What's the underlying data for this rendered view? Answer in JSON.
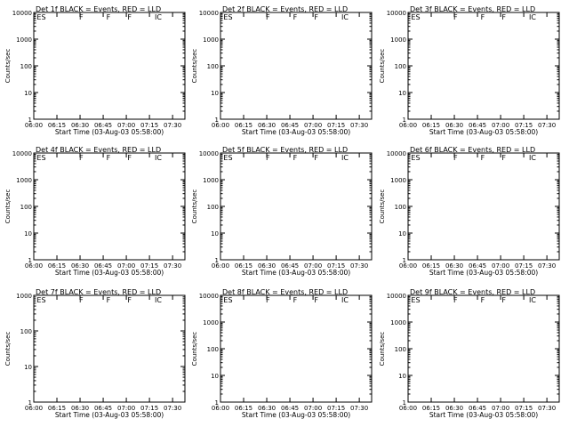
{
  "figure": {
    "colors": {
      "events": "#000000",
      "lld": "#d00000",
      "axes": "#000000",
      "background": "#ffffff"
    },
    "panels_grid": "3x3"
  },
  "chart_data": [
    {
      "type": "line",
      "title": "Det  1f BLACK = Events, RED = LLD",
      "xlabel": "Start Time (03-Aug-03 05:58:00)",
      "ylabel": "Counts/sec",
      "yscale": "log",
      "ylim": [
        1,
        10000
      ],
      "xlim": [
        "06:00",
        "07:38"
      ],
      "xticks": [
        "06:00",
        "06:15",
        "06:30",
        "06:45",
        "07:00",
        "07:15",
        "07:30"
      ],
      "yticks": [
        "1",
        "10",
        "100",
        "1000",
        "10000"
      ],
      "annotations": [
        "ES",
        "F",
        "F",
        "F",
        "IC"
      ],
      "series": [
        {
          "name": "Events",
          "color": "#000000"
        },
        {
          "name": "LLD",
          "color": "#d00000"
        }
      ],
      "x": [],
      "values": {}
    },
    {
      "type": "line",
      "title": "Det  2f BLACK = Events, RED = LLD",
      "xlabel": "Start Time (03-Aug-03 05:58:00)",
      "ylabel": "Counts/sec",
      "yscale": "log",
      "ylim": [
        1,
        10000
      ],
      "xlim": [
        "06:00",
        "07:38"
      ],
      "xticks": [
        "06:00",
        "06:15",
        "06:30",
        "06:45",
        "07:00",
        "07:15",
        "07:30"
      ],
      "yticks": [
        "1",
        "10",
        "100",
        "1000",
        "10000"
      ],
      "annotations": [
        "ES",
        "F",
        "F",
        "F",
        "IC"
      ],
      "series": [
        {
          "name": "Events",
          "color": "#000000"
        },
        {
          "name": "LLD",
          "color": "#d00000"
        }
      ],
      "x": [],
      "values": {}
    },
    {
      "type": "line",
      "title": "Det  3f BLACK = Events, RED = LLD",
      "xlabel": "Start Time (03-Aug-03 05:58:00)",
      "ylabel": "Counts/sec",
      "yscale": "log",
      "ylim": [
        1,
        10000
      ],
      "xlim": [
        "06:00",
        "07:38"
      ],
      "xticks": [
        "06:00",
        "06:15",
        "06:30",
        "06:45",
        "07:00",
        "07:15",
        "07:30"
      ],
      "yticks": [
        "1",
        "10",
        "100",
        "1000",
        "10000"
      ],
      "annotations": [
        "ES",
        "F",
        "F",
        "F",
        "IC"
      ],
      "series": [
        {
          "name": "Events",
          "color": "#000000"
        },
        {
          "name": "LLD",
          "color": "#d00000"
        }
      ],
      "x": [],
      "values": {}
    },
    {
      "type": "line",
      "title": "Det  4f BLACK = Events, RED = LLD",
      "xlabel": "Start Time (03-Aug-03 05:58:00)",
      "ylabel": "Counts/sec",
      "yscale": "log",
      "ylim": [
        1,
        10000
      ],
      "xlim": [
        "06:00",
        "07:38"
      ],
      "xticks": [
        "06:00",
        "06:15",
        "06:30",
        "06:45",
        "07:00",
        "07:15",
        "07:30"
      ],
      "yticks": [
        "1",
        "10",
        "100",
        "1000",
        "10000"
      ],
      "annotations": [
        "ES",
        "F",
        "F",
        "F",
        "IC"
      ],
      "series": [
        {
          "name": "Events",
          "color": "#000000"
        },
        {
          "name": "LLD",
          "color": "#d00000"
        }
      ],
      "x": [],
      "values": {}
    },
    {
      "type": "line",
      "title": "Det  5f BLACK = Events, RED = LLD",
      "xlabel": "Start Time (03-Aug-03 05:58:00)",
      "ylabel": "Counts/sec",
      "yscale": "log",
      "ylim": [
        1,
        10000
      ],
      "xlim": [
        "06:00",
        "07:38"
      ],
      "xticks": [
        "06:00",
        "06:15",
        "06:30",
        "06:45",
        "07:00",
        "07:15",
        "07:30"
      ],
      "yticks": [
        "1",
        "10",
        "100",
        "1000",
        "10000"
      ],
      "annotations": [
        "ES",
        "F",
        "F",
        "F",
        "IC"
      ],
      "series": [
        {
          "name": "Events",
          "color": "#000000"
        },
        {
          "name": "LLD",
          "color": "#d00000"
        }
      ],
      "x": [],
      "values": {}
    },
    {
      "type": "line",
      "title": "Det  6f BLACK = Events, RED = LLD",
      "xlabel": "Start Time (03-Aug-03 05:58:00)",
      "ylabel": "Counts/sec",
      "yscale": "log",
      "ylim": [
        1,
        10000
      ],
      "xlim": [
        "06:00",
        "07:38"
      ],
      "xticks": [
        "06:00",
        "06:15",
        "06:30",
        "06:45",
        "07:00",
        "07:15",
        "07:30"
      ],
      "yticks": [
        "1",
        "10",
        "100",
        "1000",
        "10000"
      ],
      "annotations": [
        "ES",
        "F",
        "F",
        "F",
        "IC"
      ],
      "series": [
        {
          "name": "Events",
          "color": "#000000"
        },
        {
          "name": "LLD",
          "color": "#d00000"
        }
      ],
      "x": [],
      "values": {}
    },
    {
      "type": "line",
      "title": "Det  7f BLACK = Events, RED = LLD",
      "xlabel": "Start Time (03-Aug-03 05:58:00)",
      "ylabel": "Counts/sec",
      "yscale": "log",
      "ylim": [
        1,
        1000
      ],
      "xlim": [
        "06:00",
        "07:38"
      ],
      "xticks": [
        "06:00",
        "06:15",
        "06:30",
        "06:45",
        "07:00",
        "07:15",
        "07:30"
      ],
      "yticks": [
        "1",
        "10",
        "100",
        "1000"
      ],
      "annotations": [
        "ES",
        "F",
        "F",
        "F",
        "IC"
      ],
      "series": [
        {
          "name": "Events",
          "color": "#000000"
        },
        {
          "name": "LLD",
          "color": "#d00000"
        }
      ],
      "x": [],
      "values": {}
    },
    {
      "type": "line",
      "title": "Det  8f BLACK = Events, RED = LLD",
      "xlabel": "Start Time (03-Aug-03 05:58:00)",
      "ylabel": "Counts/sec",
      "yscale": "log",
      "ylim": [
        1,
        10000
      ],
      "xlim": [
        "06:00",
        "07:38"
      ],
      "xticks": [
        "06:00",
        "06:15",
        "06:30",
        "06:45",
        "07:00",
        "07:15",
        "07:30"
      ],
      "yticks": [
        "1",
        "10",
        "100",
        "1000",
        "10000"
      ],
      "annotations": [
        "ES",
        "F",
        "F",
        "F",
        "IC"
      ],
      "series": [
        {
          "name": "Events",
          "color": "#000000"
        },
        {
          "name": "LLD",
          "color": "#d00000"
        }
      ],
      "x": [],
      "values": {}
    },
    {
      "type": "line",
      "title": "Det  9f BLACK = Events, RED = LLD",
      "xlabel": "Start Time (03-Aug-03 05:58:00)",
      "ylabel": "Counts/sec",
      "yscale": "log",
      "ylim": [
        1,
        10000
      ],
      "xlim": [
        "06:00",
        "07:38"
      ],
      "xticks": [
        "06:00",
        "06:15",
        "06:30",
        "06:45",
        "07:00",
        "07:15",
        "07:30"
      ],
      "yticks": [
        "1",
        "10",
        "100",
        "1000",
        "10000"
      ],
      "annotations": [
        "ES",
        "F",
        "F",
        "F",
        "IC"
      ],
      "series": [
        {
          "name": "Events",
          "color": "#000000"
        },
        {
          "name": "LLD",
          "color": "#d00000"
        }
      ],
      "x": [],
      "values": {}
    }
  ]
}
